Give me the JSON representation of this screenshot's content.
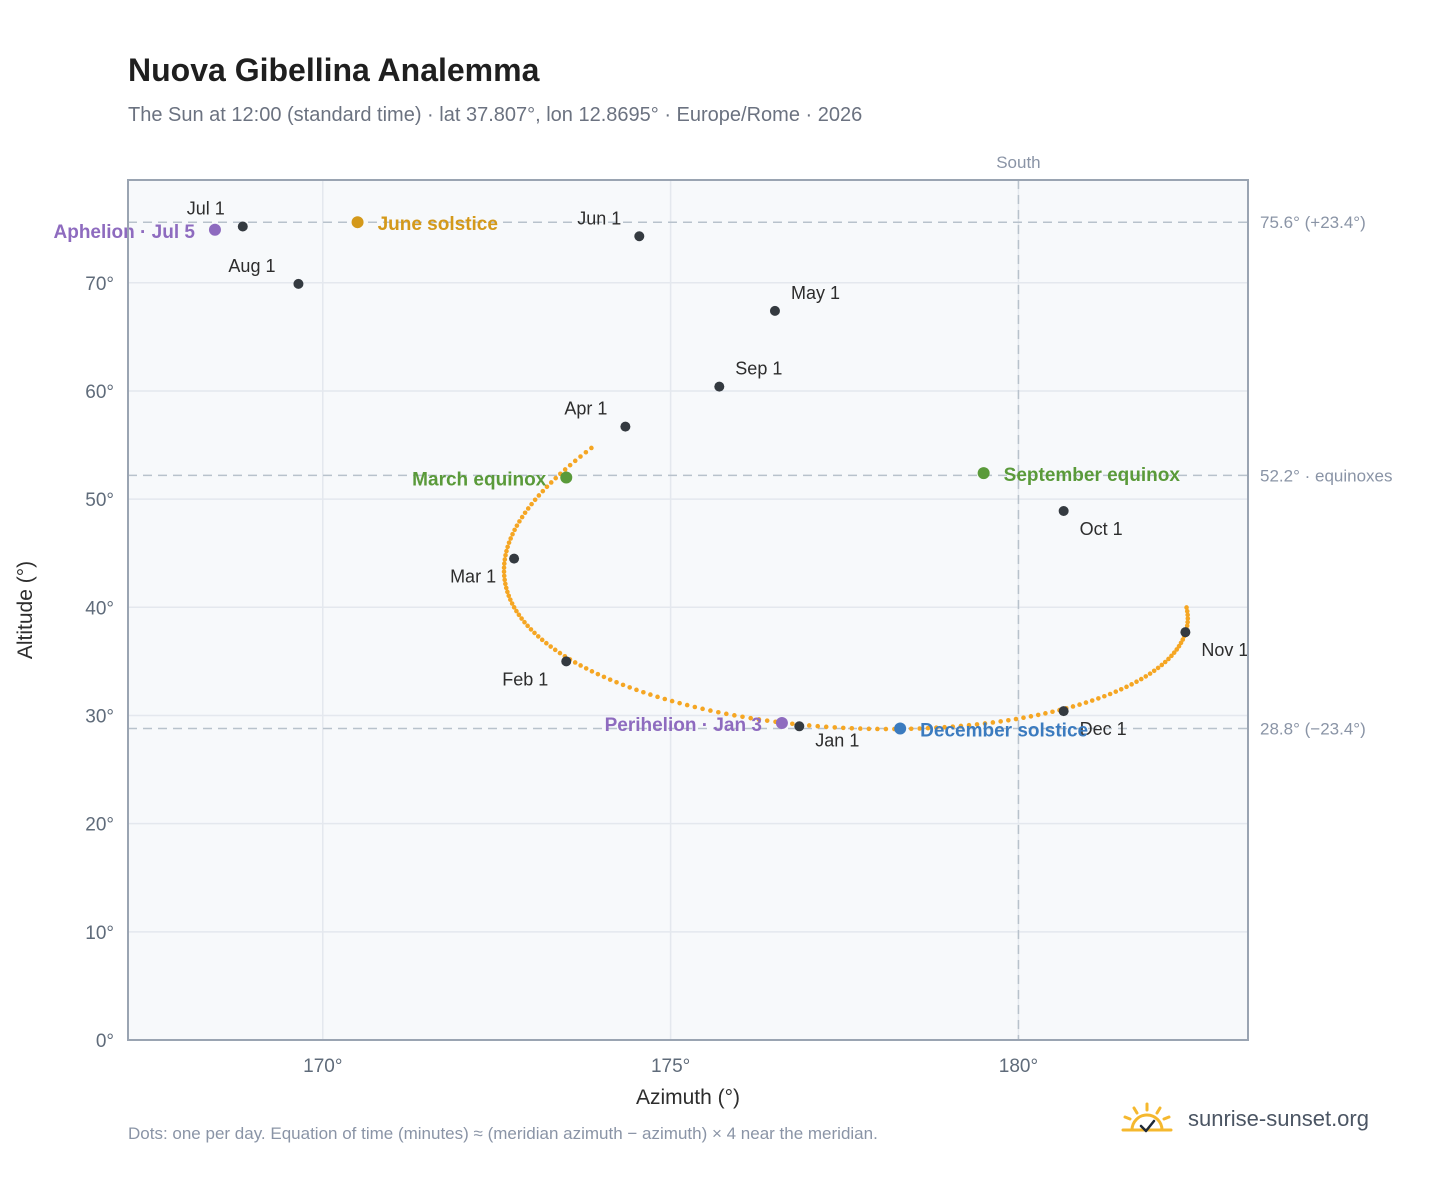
{
  "title": "Nuova Gibellina Analemma",
  "subtitle": "The Sun at 12:00 (standard time) · lat 37.807°, lon 12.8695° · Europe/Rome · 2026",
  "footnote": "Dots: one per day. Equation of time (minutes) ≈ (meridian azimuth − azimuth) × 4 near the meridian.",
  "brand": {
    "text": "sunrise-sunset.org",
    "icon": "sun-check-icon",
    "color": "#f5b82e"
  },
  "colors": {
    "path": "#f5a623",
    "marker": "#343a40",
    "solstice_june": "#d4991a",
    "solstice_december": "#3b7bbf",
    "equinox": "#5a9a3a",
    "apsis": "#8e6bbf",
    "plot_bg": "#f7f9fb",
    "grid": "#e4e8ee",
    "frame": "#9aa4b2",
    "ref_line": "#b8c2cc"
  },
  "chart_data": {
    "type": "scatter",
    "title": "Nuova Gibellina Analemma",
    "xlabel": "Azimuth (°)",
    "ylabel": "Altitude (°)",
    "xlim": [
      167.2,
      183.3
    ],
    "ylim": [
      0,
      79.5
    ],
    "xticks": [
      170,
      175,
      180
    ],
    "xtick_labels": [
      "170°",
      "175°",
      "180°"
    ],
    "yticks": [
      0,
      10,
      20,
      30,
      40,
      50,
      60,
      70
    ],
    "ytick_labels": [
      "0°",
      "10°",
      "20°",
      "30°",
      "40°",
      "50°",
      "60°",
      "70°"
    ],
    "grid": true,
    "meridian": {
      "azimuth": 180,
      "label": "South"
    },
    "reference_lines": [
      {
        "altitude": 75.6,
        "label": "75.6° (+23.4°)"
      },
      {
        "altitude": 52.2,
        "label": "52.2° · equinoxes"
      },
      {
        "altitude": 28.8,
        "label": "28.8° (−23.4°)"
      }
    ],
    "month_markers": [
      {
        "label": "Jan 1",
        "az": 176.85,
        "alt": 29.0
      },
      {
        "label": "Feb 1",
        "az": 173.5,
        "alt": 35.0
      },
      {
        "label": "Mar 1",
        "az": 172.75,
        "alt": 44.5
      },
      {
        "label": "Apr 1",
        "az": 174.35,
        "alt": 56.7
      },
      {
        "label": "May 1",
        "az": 176.5,
        "alt": 67.4
      },
      {
        "label": "Jun 1",
        "az": 174.55,
        "alt": 74.3
      },
      {
        "label": "Jul 1",
        "az": 168.85,
        "alt": 75.2
      },
      {
        "label": "Aug 1",
        "az": 169.65,
        "alt": 69.9
      },
      {
        "label": "Sep 1",
        "az": 175.7,
        "alt": 60.4
      },
      {
        "label": "Oct 1",
        "az": 180.65,
        "alt": 48.9
      },
      {
        "label": "Nov 1",
        "az": 182.4,
        "alt": 37.7
      },
      {
        "label": "Dec 1",
        "az": 180.65,
        "alt": 30.4
      }
    ],
    "events": [
      {
        "label": "March equinox",
        "az": 173.5,
        "alt": 52.0,
        "kind": "equinox"
      },
      {
        "label": "June solstice",
        "az": 170.5,
        "alt": 75.6,
        "kind": "solstice_june"
      },
      {
        "label": "September equinox",
        "az": 179.5,
        "alt": 52.4,
        "kind": "equinox"
      },
      {
        "label": "December solstice",
        "az": 178.3,
        "alt": 28.8,
        "kind": "solstice_december"
      },
      {
        "label": "Perihelion · Jan 3",
        "az": 176.6,
        "alt": 29.3,
        "kind": "apsis"
      },
      {
        "label": "Aphelion · Jul 5",
        "az": 168.45,
        "alt": 74.9,
        "kind": "apsis"
      }
    ]
  }
}
